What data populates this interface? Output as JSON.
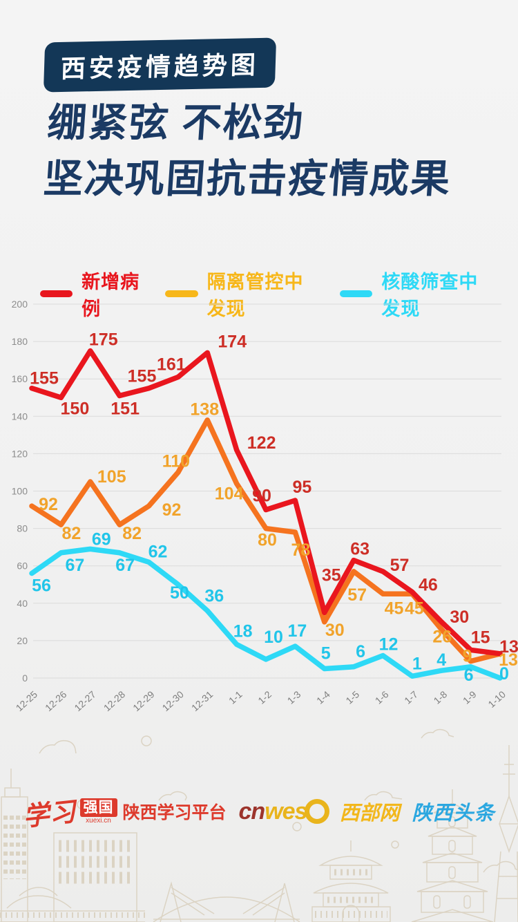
{
  "header": {
    "badge": "西安疫情趋势图",
    "title": "绷紧弦  不松劲\n坚决巩固抗击疫情成果"
  },
  "chart_data": {
    "type": "line",
    "x": [
      "12-25",
      "12-26",
      "12-27",
      "12-28",
      "12-29",
      "12-30",
      "12-31",
      "1-1",
      "1-2",
      "1-3",
      "1-4",
      "1-5",
      "1-6",
      "1-7",
      "1-8",
      "1-9",
      "1-10"
    ],
    "ylim": [
      0,
      200
    ],
    "ytick_step": 20,
    "grid": true,
    "legend_position": "top",
    "series": [
      {
        "name": "新增病例",
        "line_color": "#e9161e",
        "label_color": "#cd2e26",
        "legend_color": "#e8161e",
        "values": [
          155,
          150,
          175,
          151,
          155,
          161,
          174,
          122,
          90,
          95,
          35,
          63,
          57,
          46,
          30,
          15,
          13
        ]
      },
      {
        "name": "隔离管控中发现",
        "line_color": "#f5731f",
        "label_color": "#f1a32b",
        "legend_color": "#f7b71a",
        "values": [
          92,
          82,
          105,
          82,
          92,
          110,
          138,
          104,
          80,
          78,
          30,
          57,
          45,
          45,
          26,
          9,
          13
        ]
      },
      {
        "name": "核酸筛查中发现",
        "line_color": "#2ed9f6",
        "label_color": "#21c5e9",
        "legend_color": "#2ed9f6",
        "values": [
          56,
          67,
          69,
          67,
          62,
          50,
          36,
          18,
          10,
          17,
          5,
          6,
          12,
          1,
          4,
          6,
          0
        ]
      }
    ],
    "axis_colors": {
      "ytick": "#8c8c8c",
      "xtick": "#7f7f7f",
      "grid": "#dadada"
    }
  },
  "footer": {
    "xuexi_script": "学习",
    "xuexi_box": "强国",
    "xuexi_url": "xuexi.cn",
    "xuexi_platform": "陕西学习平台",
    "cnwest_cn": "cn",
    "cnwest_west": "wes",
    "cnwest_site": "西部网",
    "toutiao": "陕西头条"
  }
}
